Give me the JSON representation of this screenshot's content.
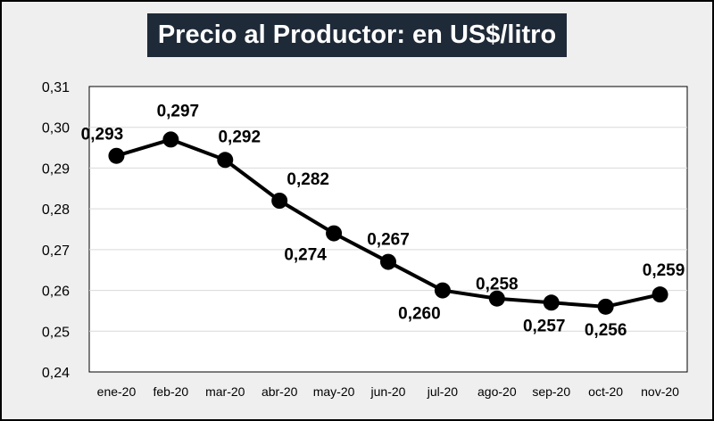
{
  "chart_data": {
    "type": "line",
    "title": "Precio al Productor: en US$/litro",
    "categories": [
      "ene-20",
      "feb-20",
      "mar-20",
      "abr-20",
      "may-20",
      "jun-20",
      "jul-20",
      "ago-20",
      "sep-20",
      "oct-20",
      "nov-20"
    ],
    "values": [
      0.293,
      0.297,
      0.292,
      0.282,
      0.274,
      0.267,
      0.26,
      0.258,
      0.257,
      0.256,
      0.259
    ],
    "data_labels": [
      "0,293",
      "0,297",
      "0,292",
      "0,282",
      "0,274",
      "0,267",
      "0,260",
      "0,258",
      "0,257",
      "0,256",
      "0,259"
    ],
    "y_tick_labels": [
      "0,24",
      "0,25",
      "0,26",
      "0,27",
      "0,28",
      "0,29",
      "0,30",
      "0,31"
    ],
    "ylim": [
      0.24,
      0.31
    ],
    "xlabel": "",
    "ylabel": "",
    "grid": true,
    "legend": "none",
    "colors": {
      "line": "#000000",
      "title_bg": "#1f2a38",
      "title_text": "#ffffff",
      "frame_bg": "#efefef",
      "plot_bg": "#ffffff",
      "grid": "#d9d9d9"
    }
  }
}
